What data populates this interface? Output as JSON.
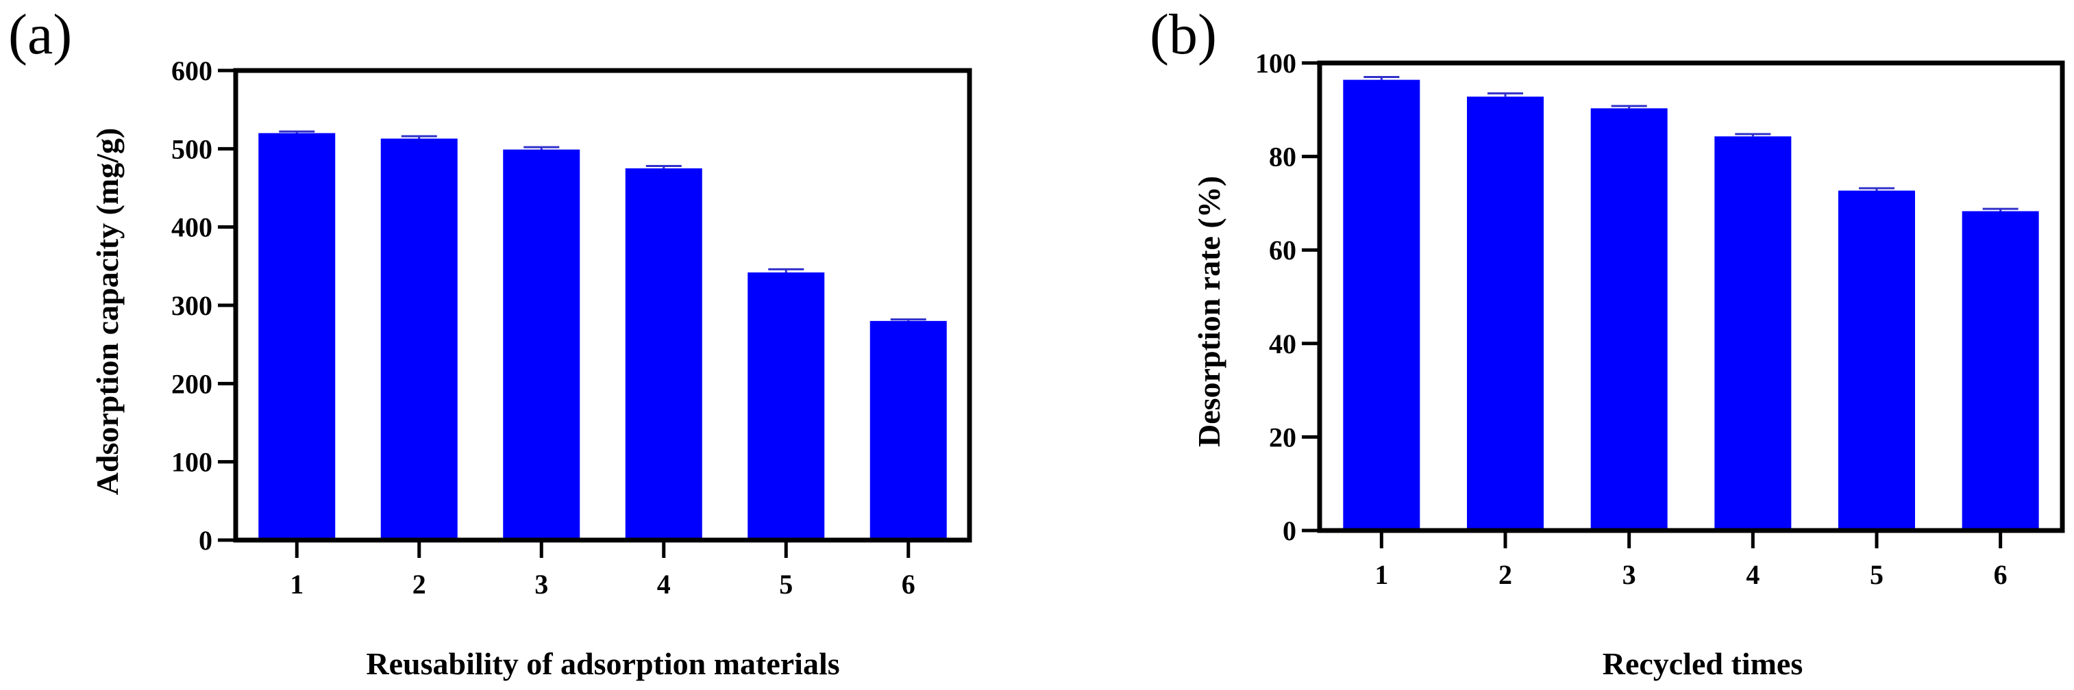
{
  "chart_data": [
    {
      "type": "bar",
      "panel_label": "(a)",
      "title": "",
      "xlabel": "Reusability of adsorption materials",
      "ylabel": "Adsorption capacity (mg/g)",
      "categories": [
        "1",
        "2",
        "3",
        "4",
        "5",
        "6"
      ],
      "values": [
        520,
        513,
        499,
        475,
        342,
        280
      ],
      "errors": [
        2,
        3,
        3,
        3,
        4,
        2
      ],
      "ylim": [
        0,
        600
      ],
      "yticks": [
        0,
        100,
        200,
        300,
        400,
        500,
        600
      ],
      "bar_color": "#0000ff"
    },
    {
      "type": "bar",
      "panel_label": "(b)",
      "title": "",
      "xlabel": "Recycled  times",
      "ylabel": "Desorption rate (%)",
      "categories": [
        "1",
        "2",
        "3",
        "4",
        "5",
        "6"
      ],
      "values": [
        96.4,
        92.8,
        90.3,
        84.3,
        72.7,
        68.3
      ],
      "errors": [
        0.6,
        0.7,
        0.5,
        0.5,
        0.5,
        0.5
      ],
      "ylim": [
        0,
        100
      ],
      "yticks": [
        0,
        20,
        40,
        60,
        80,
        100
      ],
      "bar_color": "#0000ff"
    }
  ]
}
